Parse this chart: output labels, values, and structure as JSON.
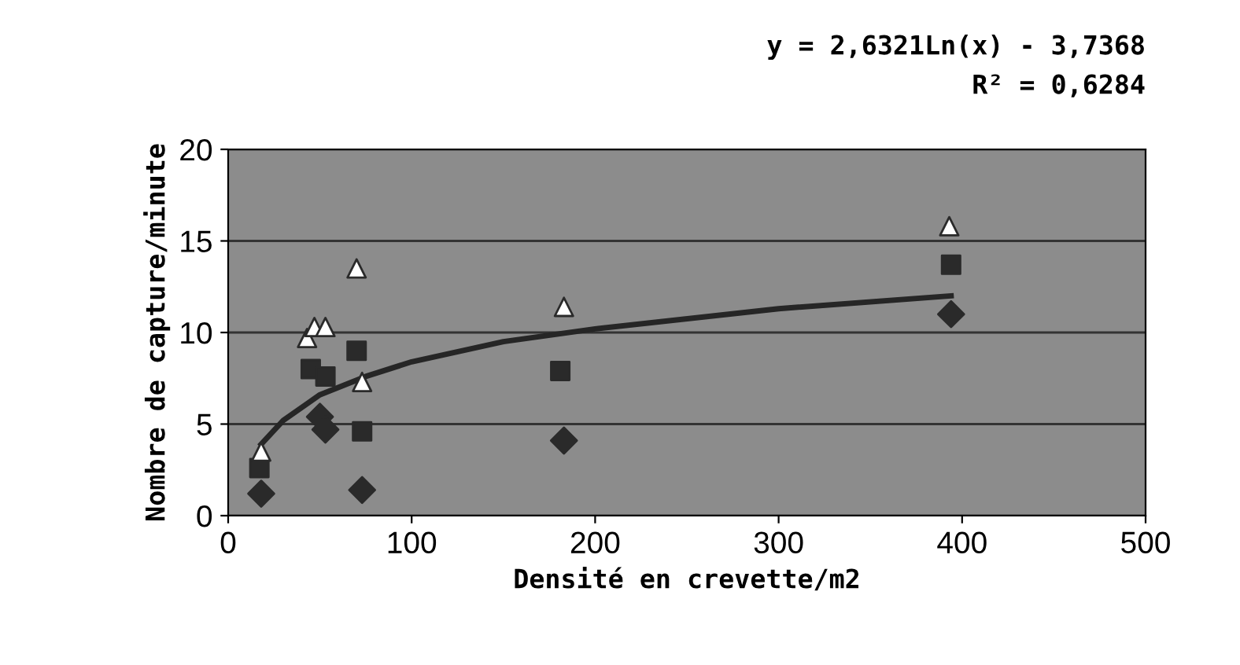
{
  "chart_data": {
    "type": "scatter",
    "xlabel": "Densité en crevette/m2",
    "ylabel": "Nombre de capture/minute",
    "annotations": [
      "y = 2,6321Ln(x) - 3,7368",
      "R² = 0,6284"
    ],
    "xlim": [
      0,
      500
    ],
    "xticks": [
      0,
      100,
      200,
      300,
      400,
      500
    ],
    "ylim": [
      0,
      20
    ],
    "yticks": [
      0,
      5,
      10,
      15,
      20
    ],
    "grid": "y",
    "legend": false,
    "series": [
      {
        "marker": "diamond",
        "color": "#2a2a2a",
        "x": [
          18,
          50,
          53,
          73,
          183,
          394
        ],
        "values": [
          1.2,
          5.4,
          4.7,
          1.4,
          4.1,
          11.0
        ]
      },
      {
        "marker": "square",
        "color": "#2a2a2a",
        "x": [
          17,
          45,
          53,
          70,
          73,
          181,
          394
        ],
        "values": [
          2.6,
          8.0,
          7.6,
          9.0,
          4.6,
          7.9,
          13.7
        ]
      },
      {
        "marker": "triangle",
        "color": "#ffffff",
        "x": [
          18,
          43,
          47,
          53,
          70,
          73,
          183,
          393
        ],
        "values": [
          3.5,
          9.7,
          10.3,
          10.3,
          13.5,
          7.3,
          11.4,
          15.8
        ]
      },
      {
        "type": "line",
        "color": "#262626",
        "x": [
          18,
          30,
          50,
          75,
          100,
          150,
          200,
          300,
          394
        ],
        "values": [
          3.9,
          5.2,
          6.6,
          7.6,
          8.4,
          9.5,
          10.2,
          11.3,
          12.0
        ]
      }
    ]
  }
}
